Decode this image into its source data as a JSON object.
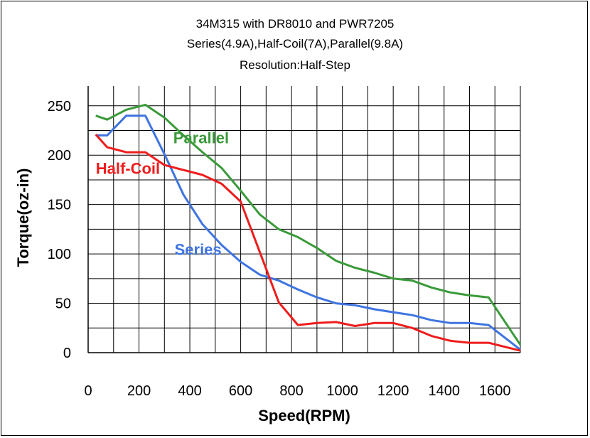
{
  "chart_data": {
    "type": "line",
    "title_lines": [
      "34M315 with DR8010 and PWR7205",
      "Series(4.9A),Half-Coil(7A),Parallel(9.8A)",
      "Resolution:Half-Step"
    ],
    "xlabel": "Speed(RPM)",
    "ylabel": "Torque(oz-in)",
    "xlim": [
      0,
      1700
    ],
    "ylim": [
      0,
      270
    ],
    "xticks": [
      0,
      200,
      400,
      600,
      800,
      1000,
      1200,
      1400,
      1600
    ],
    "yticks": [
      0,
      50,
      100,
      150,
      200,
      250
    ],
    "grid": true,
    "legend": "inline labels",
    "series": [
      {
        "name": "Parallel",
        "color": "#3a9a3a",
        "points": [
          [
            30,
            240
          ],
          [
            75,
            236
          ],
          [
            150,
            246
          ],
          [
            225,
            251
          ],
          [
            300,
            238
          ],
          [
            375,
            220
          ],
          [
            450,
            203
          ],
          [
            525,
            187
          ],
          [
            600,
            164
          ],
          [
            675,
            140
          ],
          [
            750,
            125
          ],
          [
            825,
            117
          ],
          [
            900,
            106
          ],
          [
            975,
            93
          ],
          [
            1050,
            86
          ],
          [
            1125,
            81
          ],
          [
            1200,
            75
          ],
          [
            1275,
            73
          ],
          [
            1350,
            66
          ],
          [
            1425,
            61
          ],
          [
            1500,
            58
          ],
          [
            1575,
            56
          ],
          [
            1700,
            8
          ]
        ]
      },
      {
        "name": "Series",
        "color": "#3f74e0",
        "points": [
          [
            30,
            220
          ],
          [
            75,
            220
          ],
          [
            150,
            240
          ],
          [
            225,
            240
          ],
          [
            300,
            201
          ],
          [
            375,
            160
          ],
          [
            450,
            130
          ],
          [
            525,
            109
          ],
          [
            600,
            92
          ],
          [
            675,
            79
          ],
          [
            750,
            73
          ],
          [
            825,
            64
          ],
          [
            900,
            56
          ],
          [
            975,
            50
          ],
          [
            1050,
            48
          ],
          [
            1125,
            44
          ],
          [
            1200,
            41
          ],
          [
            1275,
            38
          ],
          [
            1350,
            33
          ],
          [
            1425,
            30
          ],
          [
            1500,
            30
          ],
          [
            1575,
            28
          ],
          [
            1700,
            3
          ]
        ]
      },
      {
        "name": "Half-Coil",
        "color": "#ee1c1c",
        "points": [
          [
            30,
            221
          ],
          [
            75,
            208
          ],
          [
            150,
            203
          ],
          [
            225,
            203
          ],
          [
            300,
            190
          ],
          [
            375,
            185
          ],
          [
            450,
            180
          ],
          [
            525,
            171
          ],
          [
            600,
            153
          ],
          [
            675,
            102
          ],
          [
            750,
            51
          ],
          [
            825,
            28
          ],
          [
            900,
            30
          ],
          [
            975,
            31
          ],
          [
            1050,
            27
          ],
          [
            1125,
            30
          ],
          [
            1200,
            30
          ],
          [
            1275,
            25
          ],
          [
            1350,
            17
          ],
          [
            1425,
            12
          ],
          [
            1500,
            10
          ],
          [
            1575,
            10
          ],
          [
            1700,
            2
          ]
        ]
      }
    ],
    "annotations": [
      {
        "text": "Parallel",
        "series": "Parallel",
        "x": 335,
        "y": 212
      },
      {
        "text": "Half-Coil",
        "series": "Half-Coil",
        "x": 30,
        "y": 181
      },
      {
        "text": "Series",
        "series": "Series",
        "x": 340,
        "y": 99
      }
    ]
  }
}
